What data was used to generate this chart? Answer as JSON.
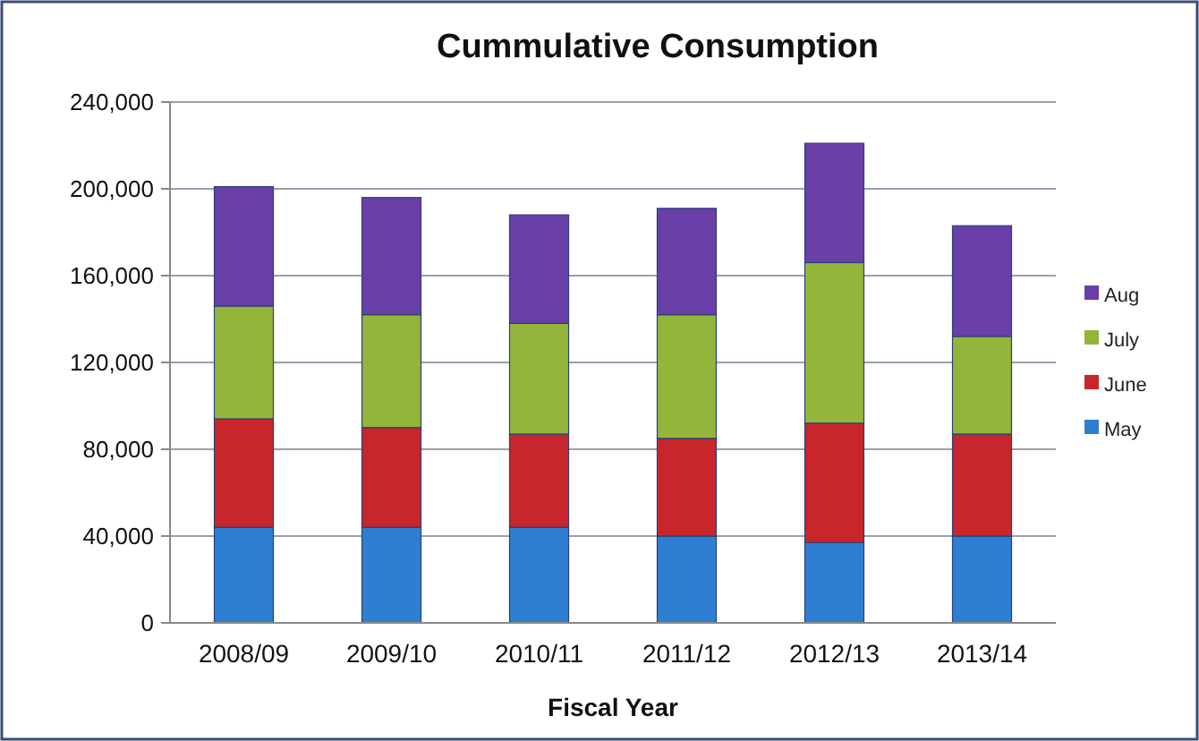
{
  "chart_data": {
    "type": "bar",
    "title": "Cummulative Consumption",
    "xlabel": "Fiscal Year",
    "categories": [
      "2008/09",
      "2009/10",
      "2010/11",
      "2011/12",
      "2012/13",
      "2013/14"
    ],
    "stacked": true,
    "series": [
      {
        "name": "May",
        "color": "#2e7fd1",
        "values": [
          44000,
          44000,
          44000,
          40000,
          37000,
          40000
        ]
      },
      {
        "name": "June",
        "color": "#c8262a",
        "values": [
          50000,
          46000,
          43000,
          45000,
          55000,
          47000
        ]
      },
      {
        "name": "July",
        "color": "#93b53a",
        "values": [
          52000,
          52000,
          51000,
          57000,
          74000,
          45000
        ]
      },
      {
        "name": "Aug",
        "color": "#6a3fa8",
        "values": [
          55000,
          54000,
          50000,
          49000,
          55000,
          51000
        ]
      }
    ],
    "ylim": [
      0,
      240000
    ],
    "yticks": [
      {
        "value": 0,
        "label": "0"
      },
      {
        "value": 40000,
        "label": "40,000"
      },
      {
        "value": 80000,
        "label": "80,000"
      },
      {
        "value": 120000,
        "label": "120,000"
      },
      {
        "value": 160000,
        "label": "160,000"
      },
      {
        "value": 200000,
        "label": "200,000"
      },
      {
        "value": 240000,
        "label": "240,000"
      }
    ],
    "grid": "y",
    "legend": "right"
  }
}
